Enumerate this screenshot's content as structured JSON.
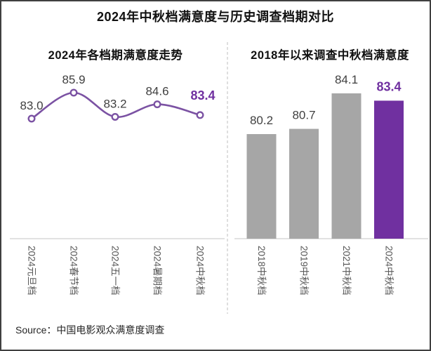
{
  "title": "2024年中秋档满意度与历史调查档期对比",
  "source": {
    "prefix": "Source：",
    "text": "中国电影观众满意度调查"
  },
  "colors": {
    "accent_purple": "#7030A0",
    "line_purple": "#7B52A3",
    "bar_gray": "#A6A6A6",
    "value_label_gray": "#404040",
    "category_label_gray": "#595959",
    "axis_line_gray": "#D9D9D9",
    "divider_gray": "#BFBFBF"
  },
  "chart_data": [
    {
      "type": "line",
      "title": "2024年各档期满意度走势",
      "categories": [
        "2024元旦档",
        "2024春节档",
        "2024五一档",
        "2024暑期档",
        "2024中秋档"
      ],
      "values": [
        83.0,
        85.9,
        83.2,
        84.6,
        83.4
      ],
      "highlight_index": 4,
      "marker": "hollow-circle",
      "smooth": true,
      "grid": false,
      "legend": "none",
      "ylim": [
        69.6,
        88
      ]
    },
    {
      "type": "bar",
      "title": "2018年以来调查中秋档满意度",
      "categories": [
        "2018中秋档",
        "2019中秋档",
        "2021中秋档",
        "2024中秋档"
      ],
      "values": [
        80.2,
        80.7,
        84.1,
        83.4
      ],
      "highlight_index": 3,
      "grid": false,
      "legend": "none",
      "ylim": [
        70.2,
        88
      ]
    }
  ]
}
